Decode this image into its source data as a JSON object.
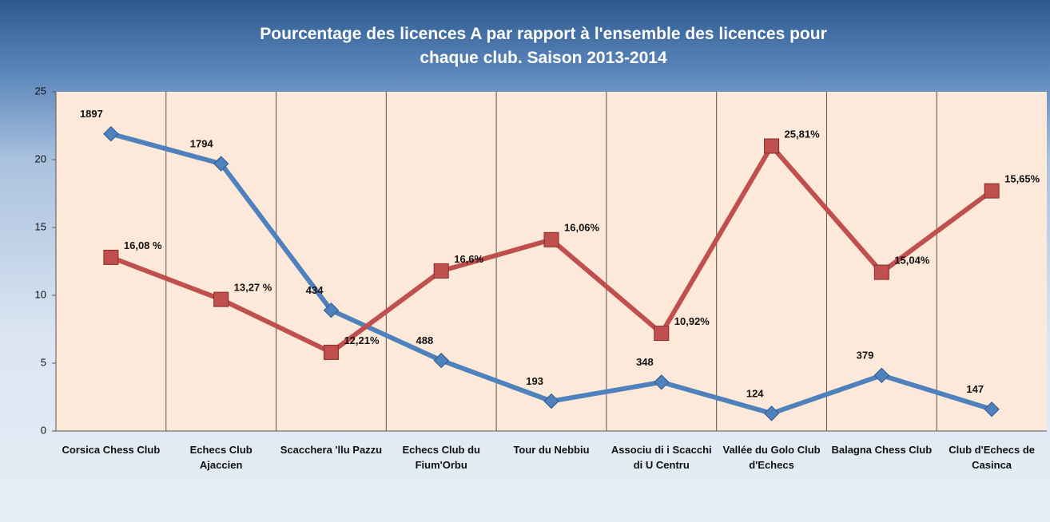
{
  "chart_data": {
    "type": "line",
    "title": "Pourcentage des licences  A par rapport à l'ensemble des licences pour chaque club. Saison 2013-2014",
    "categories": [
      "Corsica Chess Club",
      "Echecs Club Ajaccien",
      "Scacchera 'llu Pazzu",
      "Echecs Club du Fium'Orbu",
      "Tour du Nebbiu",
      "Associu di i Scacchi di U Centru",
      "Vallée du Golo Club d'Echecs",
      "Balagna Chess Club",
      "Club d'Echecs de Casinca"
    ],
    "series": [
      {
        "color": "#4f81bd",
        "marker": "diamond",
        "values": [
          21.9,
          19.7,
          8.9,
          5.2,
          2.2,
          3.6,
          1.3,
          4.1,
          1.6
        ],
        "labels": [
          "1897",
          "1794",
          "434",
          "488",
          "193",
          "348",
          "124",
          "379",
          "147"
        ]
      },
      {
        "color": "#c0504d",
        "marker": "square",
        "values": [
          12.8,
          9.7,
          5.8,
          11.8,
          14.1,
          7.2,
          21.0,
          11.7,
          17.7
        ],
        "labels": [
          "16,08 %",
          "13,27 %",
          "12,21%",
          "16,6%",
          "16,06%",
          "10,92%",
          "25,81%",
          "15,04%",
          "15,65%"
        ]
      }
    ],
    "ylim": [
      0,
      25
    ],
    "yticks": [
      0,
      5,
      10,
      15,
      20,
      25
    ]
  }
}
